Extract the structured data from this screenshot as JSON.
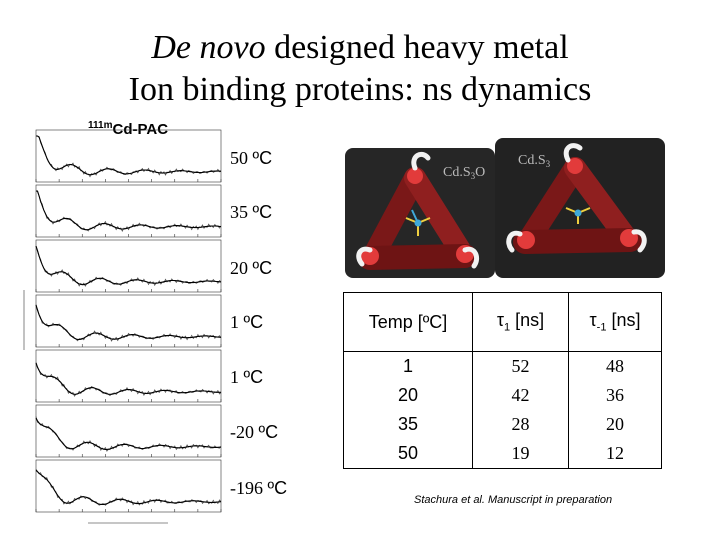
{
  "title": {
    "italic": "De novo",
    "line1_rest": " designed heavy metal",
    "line2": "Ion binding proteins: ns dynamics"
  },
  "pac_label": {
    "sup": "111m",
    "text": "Cd-PAC"
  },
  "temperatures": [
    {
      "num": "50 ",
      "unit": "ºC"
    },
    {
      "num": "35 ",
      "unit": "ºC"
    },
    {
      "num": "20 ",
      "unit": "ºC"
    },
    {
      "num": "1 ",
      "unit": "ºC"
    },
    {
      "num": "1 ",
      "unit": "ºC"
    },
    {
      "num": "-20 ",
      "unit": "ºC"
    },
    {
      "num": "-196 ",
      "unit": "ºC"
    }
  ],
  "structure_labels": {
    "left": "Cd.S3O",
    "right": "Cd.S3"
  },
  "table": {
    "headers": {
      "temp": "Temp [ºC]",
      "tau1_sym": "τ",
      "tau1_sub": "1",
      "tau1_unit": " [ns]",
      "tau2_sym": "τ",
      "tau2_sub": "-1",
      "tau2_unit": " [ns]"
    },
    "temps": [
      "1",
      "20",
      "35",
      "50"
    ],
    "tau1": [
      "52",
      "42",
      "28",
      "19"
    ],
    "tau_minus1": [
      "48",
      "36",
      "20",
      "12"
    ]
  },
  "credit": "Stachura et al. Manuscript in preparation",
  "colors": {
    "protein": "#8a1c1c",
    "loop": "#f2f2f2",
    "panel_bg": "#2a2a2a"
  }
}
